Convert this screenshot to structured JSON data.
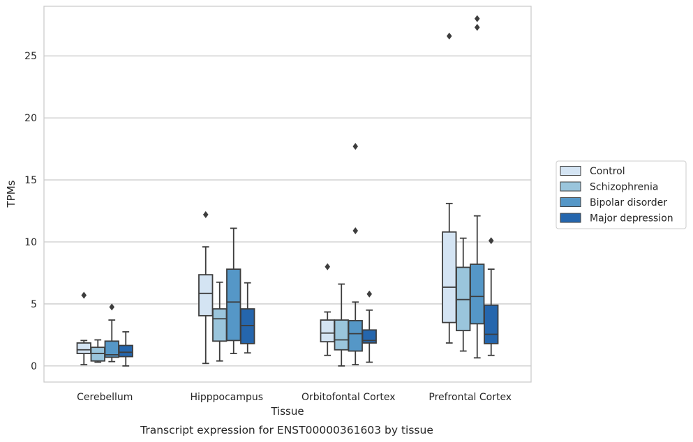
{
  "chart_data": {
    "type": "box",
    "xlabel": "Tissue",
    "ylabel": "TPMs",
    "caption": "Transcript expression for ENST00000361603 by tissue",
    "categories": [
      "Cerebellum",
      "Hipppocampus",
      "Orbitofontal Cortex",
      "Prefrontal Cortex"
    ],
    "ylim": [
      -1.3,
      29.0
    ],
    "yticks": [
      0,
      5,
      10,
      15,
      20,
      25
    ],
    "grid": "horizontal",
    "legend_position": "right",
    "colors": [
      "#d4e4f3",
      "#9ac5dc",
      "#5597c7",
      "#2566ad"
    ],
    "series": [
      {
        "name": "Control",
        "boxes": [
          {
            "min": 0.1,
            "q1": 1.0,
            "median": 1.3,
            "q3": 1.85,
            "max": 2.05,
            "outliers": [
              5.7
            ]
          },
          {
            "min": 0.2,
            "q1": 4.05,
            "median": 5.85,
            "q3": 7.35,
            "max": 9.6,
            "outliers": [
              12.2
            ]
          },
          {
            "min": 0.85,
            "q1": 1.95,
            "median": 2.65,
            "q3": 3.7,
            "max": 4.35,
            "outliers": [
              8.0
            ]
          },
          {
            "min": 1.85,
            "q1": 3.5,
            "median": 6.35,
            "q3": 10.8,
            "max": 13.1,
            "outliers": [
              26.6
            ]
          }
        ]
      },
      {
        "name": "Schizophrenia",
        "boxes": [
          {
            "min": 0.3,
            "q1": 0.4,
            "median": 1.0,
            "q3": 1.5,
            "max": 2.1,
            "outliers": []
          },
          {
            "min": 0.4,
            "q1": 2.0,
            "median": 3.8,
            "q3": 4.6,
            "max": 6.75,
            "outliers": []
          },
          {
            "min": 0.0,
            "q1": 1.3,
            "median": 2.1,
            "q3": 3.7,
            "max": 6.6,
            "outliers": []
          },
          {
            "min": 1.2,
            "q1": 2.85,
            "median": 5.35,
            "q3": 7.95,
            "max": 10.3,
            "outliers": []
          }
        ]
      },
      {
        "name": "Bipolar disorder",
        "boxes": [
          {
            "min": 0.35,
            "q1": 0.7,
            "median": 0.9,
            "q3": 2.0,
            "max": 3.7,
            "outliers": [
              4.75
            ]
          },
          {
            "min": 1.0,
            "q1": 2.05,
            "median": 5.15,
            "q3": 7.8,
            "max": 11.1,
            "outliers": []
          },
          {
            "min": 0.1,
            "q1": 1.2,
            "median": 2.6,
            "q3": 3.65,
            "max": 5.15,
            "outliers": [
              10.9,
              17.7
            ]
          },
          {
            "min": 0.65,
            "q1": 3.4,
            "median": 5.6,
            "q3": 8.2,
            "max": 12.1,
            "outliers": [
              27.3,
              28.0
            ]
          }
        ]
      },
      {
        "name": "Major depression",
        "boxes": [
          {
            "min": 0.0,
            "q1": 0.75,
            "median": 1.1,
            "q3": 1.65,
            "max": 2.75,
            "outliers": []
          },
          {
            "min": 1.05,
            "q1": 1.8,
            "median": 3.25,
            "q3": 4.6,
            "max": 6.7,
            "outliers": []
          },
          {
            "min": 0.3,
            "q1": 1.85,
            "median": 2.05,
            "q3": 2.9,
            "max": 4.5,
            "outliers": [
              5.8
            ]
          },
          {
            "min": 0.85,
            "q1": 1.8,
            "median": 2.55,
            "q3": 4.9,
            "max": 7.8,
            "outliers": [
              10.1
            ]
          }
        ]
      }
    ]
  }
}
